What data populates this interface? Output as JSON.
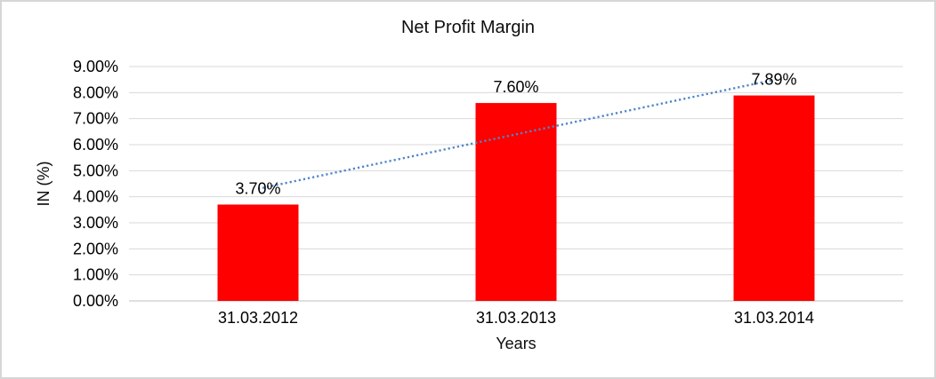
{
  "chart_data": {
    "type": "bar",
    "title": "Net Profit Margin",
    "xlabel": "Years",
    "ylabel": "IN (%)",
    "categories": [
      "31.03.2012",
      "31.03.2013",
      "31.03.2014"
    ],
    "values": [
      3.7,
      7.6,
      7.89
    ],
    "data_labels": [
      "3.70%",
      "7.60%",
      "7.89%"
    ],
    "yticks": [
      "0.00%",
      "1.00%",
      "2.00%",
      "3.00%",
      "4.00%",
      "5.00%",
      "6.00%",
      "7.00%",
      "8.00%",
      "9.00%"
    ],
    "ylim": [
      0,
      9
    ],
    "grid": true,
    "legend": false,
    "series_name": "Net Profit Margin",
    "bar_color": "#ff0000",
    "gridline_color": "#d9d9d9",
    "axis_line_color": "#bfbfbf",
    "text_color": "#000000",
    "frame_color": "#d6d6d6",
    "trendline": {
      "type": "linear",
      "style": "dotted",
      "color": "#4e86c8"
    }
  }
}
